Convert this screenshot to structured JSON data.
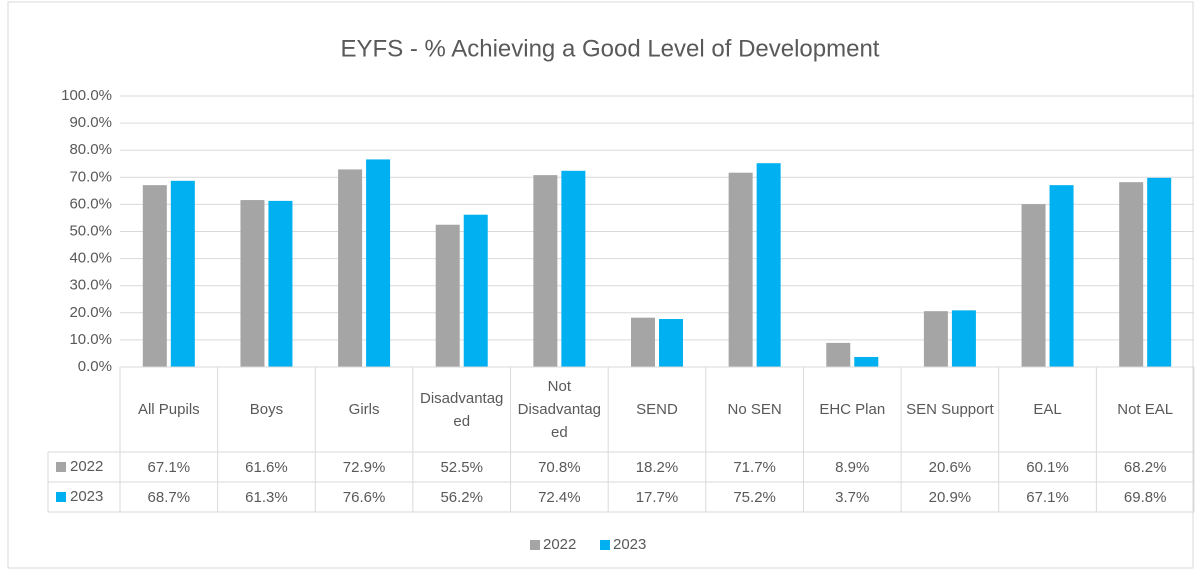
{
  "chart_data": {
    "type": "bar",
    "title": "EYFS - % Achieving a Good Level of Development",
    "categories": [
      "All Pupils",
      "Boys",
      "Girls",
      "Disadvantaged",
      "Not Disadvantaged",
      "SEND",
      "No SEN",
      "EHC Plan",
      "SEN Support",
      "EAL",
      "Not EAL"
    ],
    "series": [
      {
        "name": "2022",
        "color": "#a5a5a5",
        "values": [
          67.1,
          61.6,
          72.9,
          52.5,
          70.8,
          18.2,
          71.7,
          8.9,
          20.6,
          60.1,
          68.2
        ],
        "value_labels": [
          "67.1%",
          "61.6%",
          "72.9%",
          "52.5%",
          "70.8%",
          "18.2%",
          "71.7%",
          "8.9%",
          "20.6%",
          "60.1%",
          "68.2%"
        ]
      },
      {
        "name": "2023",
        "color": "#00b0f0",
        "values": [
          68.7,
          61.3,
          76.6,
          56.2,
          72.4,
          17.7,
          75.2,
          3.7,
          20.9,
          67.1,
          69.8
        ],
        "value_labels": [
          "68.7%",
          "61.3%",
          "76.6%",
          "56.2%",
          "72.4%",
          "17.7%",
          "75.2%",
          "3.7%",
          "20.9%",
          "67.1%",
          "69.8%"
        ]
      }
    ],
    "ylim": [
      0,
      100
    ],
    "yticks": [
      {
        "value": 0,
        "label": "0.0%"
      },
      {
        "value": 10,
        "label": "10.0%"
      },
      {
        "value": 20,
        "label": "20.0%"
      },
      {
        "value": 30,
        "label": "30.0%"
      },
      {
        "value": 40,
        "label": "40.0%"
      },
      {
        "value": 50,
        "label": "50.0%"
      },
      {
        "value": 60,
        "label": "60.0%"
      },
      {
        "value": 70,
        "label": "70.0%"
      },
      {
        "value": 80,
        "label": "80.0%"
      },
      {
        "value": 90,
        "label": "90.0%"
      },
      {
        "value": 100,
        "label": "100.0%"
      }
    ],
    "grid": true,
    "legend": "bottom"
  }
}
